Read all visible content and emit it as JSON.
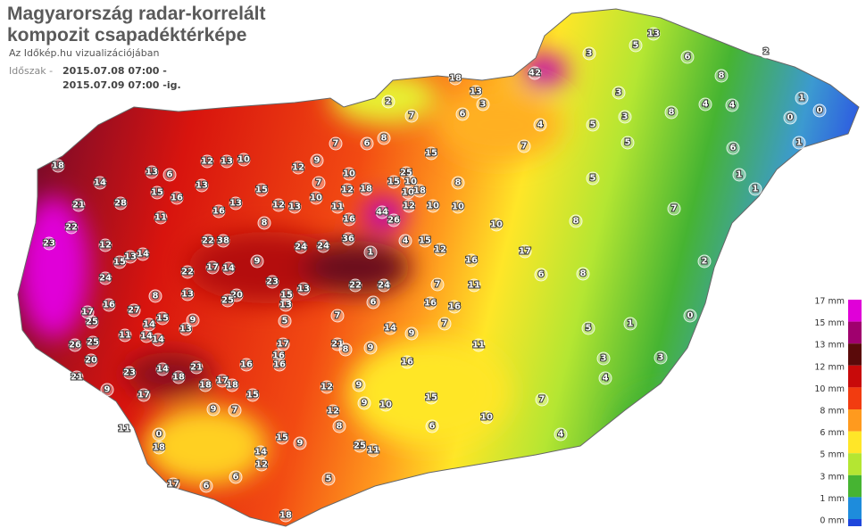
{
  "header": {
    "title_line1": "Magyarország radar-korrelált",
    "title_line2": "kompozit csapadéktérképe",
    "subtitle": "Az Időkép.hu vizualizációjában",
    "period_label": "Időszak -",
    "period_start": "2015.07.08 07:00 -",
    "period_end": "2015.07.09 07:00 -ig."
  },
  "legend": [
    {
      "label": "17 mm",
      "color": "#e000d8"
    },
    {
      "label": "15 mm",
      "color": "#a0006e"
    },
    {
      "label": "13 mm",
      "color": "#5a0a0a"
    },
    {
      "label": "12 mm",
      "color": "#c80a0a"
    },
    {
      "label": "10 mm",
      "color": "#f23c10"
    },
    {
      "label": "8 mm",
      "color": "#ff9a1e"
    },
    {
      "label": "6 mm",
      "color": "#ffe628"
    },
    {
      "label": "5 mm",
      "color": "#b4e632"
    },
    {
      "label": "3 mm",
      "color": "#46b432"
    },
    {
      "label": "1 mm",
      "color": "#1e8cdc"
    },
    {
      "label": "0 mm",
      "color": "#1e46dc"
    }
  ],
  "stations": [
    18,
    14,
    13,
    6,
    12,
    13,
    10,
    28,
    21,
    22,
    23,
    12,
    15,
    24,
    16,
    27,
    25,
    17,
    25,
    26,
    20,
    21,
    23,
    14,
    21,
    17,
    18,
    16,
    22,
    38,
    22,
    17,
    14,
    9,
    20,
    25,
    23,
    13,
    24,
    24,
    36,
    1,
    22,
    24,
    8,
    21,
    18,
    14,
    12,
    15,
    25,
    11,
    18,
    17,
    6,
    5,
    15,
    6,
    10,
    42,
    18,
    13,
    15,
    8,
    44,
    26,
    10,
    10,
    10,
    17,
    16,
    6,
    8,
    5,
    3,
    5,
    13,
    6,
    8,
    2,
    1,
    0,
    0,
    1,
    1,
    1,
    2,
    0,
    1,
    5,
    3,
    3,
    4,
    4,
    7,
    8,
    4,
    4,
    6,
    3,
    5,
    3,
    5,
    7,
    4,
    8,
    7,
    11,
    16,
    6,
    9,
    7,
    14,
    8,
    9,
    7,
    5,
    13,
    15,
    17,
    16,
    16,
    15,
    7,
    9,
    11,
    12,
    9,
    9,
    10,
    12,
    8,
    9,
    6,
    9,
    0,
    2,
    7,
    6,
    3,
    6,
    8,
    7,
    9,
    7,
    10,
    12,
    10,
    12,
    18,
    15,
    25,
    10,
    10,
    18,
    12,
    11,
    16,
    4,
    15,
    12,
    7,
    16,
    11,
    16,
    17,
    18,
    18,
    14,
    14,
    13,
    9,
    15,
    13,
    8,
    14,
    11,
    13,
    14,
    11,
    15,
    16,
    13,
    16,
    13,
    15,
    12,
    13
  ]
}
